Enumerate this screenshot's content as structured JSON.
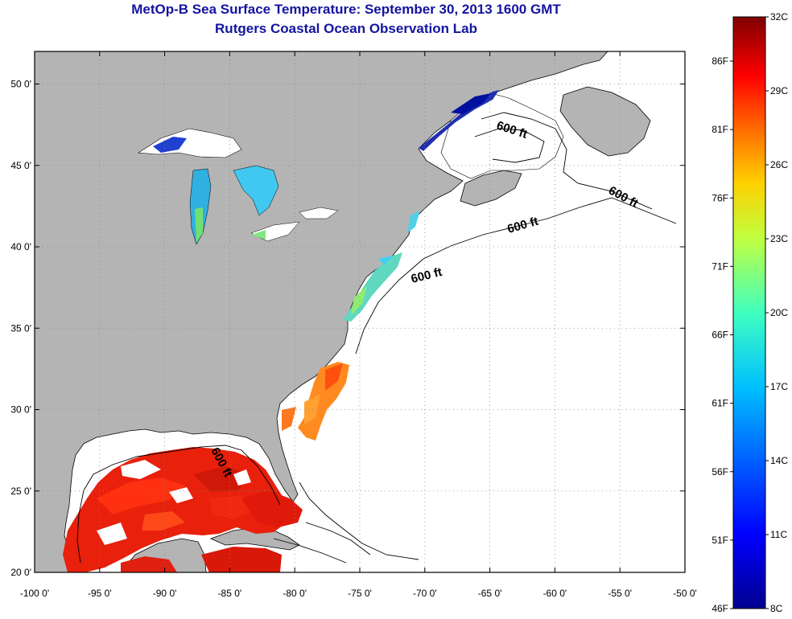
{
  "title": "MetOp-B Sea Surface Temperature:  September 30, 2013 1600 GMT",
  "subtitle": "Rutgers Coastal Ocean Observation Lab",
  "map": {
    "lon_range": [
      -100,
      -50
    ],
    "lat_range": [
      20,
      52
    ],
    "x_ticks": [
      "-100 0'",
      "-95 0'",
      "-90 0'",
      "-85 0'",
      "-80 0'",
      "-75 0'",
      "-70 0'",
      "-65 0'",
      "-60 0'",
      "-55 0'",
      "-50 0'"
    ],
    "y_ticks": [
      "50 0'",
      "45 0'",
      "40 0'",
      "35 0'",
      "30 0'",
      "25 0'",
      "20 0'"
    ],
    "land_color": "#b4b4b4",
    "grid": "dotted",
    "contour_labels": [
      "600 ft",
      "600 ft",
      "600 ft",
      "600 ft",
      "600 ft"
    ]
  },
  "colorbar": {
    "celsius_labels": [
      "32C",
      "29C",
      "26C",
      "23C",
      "20C",
      "17C",
      "14C",
      "11C",
      "8C"
    ],
    "fahrenheit_labels": [
      "86F",
      "81F",
      "76F",
      "71F",
      "66F",
      "61F",
      "56F",
      "51F",
      "46F"
    ],
    "colors": [
      "#7f0000",
      "#ff0000",
      "#ff8000",
      "#ffff00",
      "#80ff80",
      "#00ffff",
      "#0080ff",
      "#0000ff",
      "#00008f"
    ]
  }
}
